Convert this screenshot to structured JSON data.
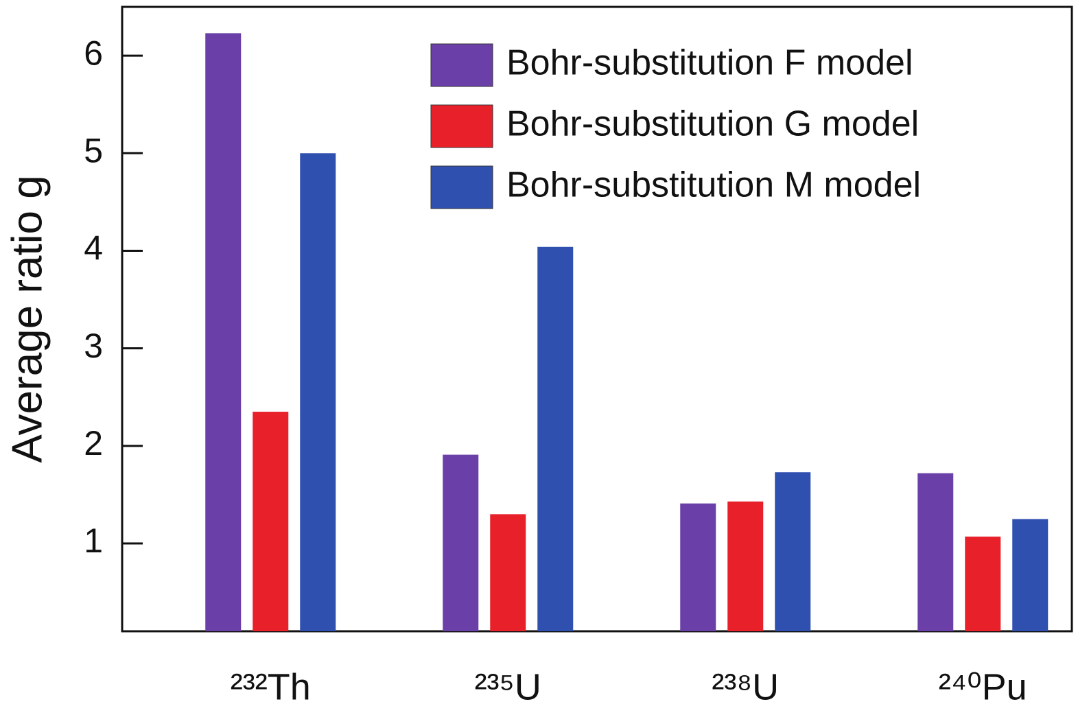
{
  "chart_data": {
    "type": "bar",
    "y_label": "Average ratio g",
    "categories": [
      "²³²Th",
      "²³⁵U",
      "²³⁸U",
      "²⁴⁰Pu"
    ],
    "series": [
      {
        "name": "Bohr-substitution F model",
        "color": "#6a3fa8",
        "values": [
          6.23,
          1.91,
          1.41,
          1.72
        ]
      },
      {
        "name": "Bohr-substitution G model",
        "color": "#e8202a",
        "values": [
          2.35,
          1.3,
          1.43,
          1.07
        ]
      },
      {
        "name": "Bohr-substitution M model",
        "color": "#3050b0",
        "values": [
          5.0,
          4.04,
          1.73,
          1.25
        ]
      }
    ],
    "ylim": [
      0.1,
      6.5
    ],
    "yticks": [
      1,
      2,
      3,
      4,
      5,
      6
    ],
    "legend": "upper right"
  }
}
